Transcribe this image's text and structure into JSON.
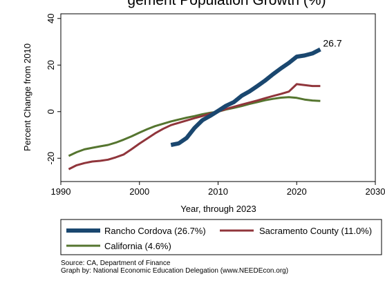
{
  "chart_data": {
    "type": "line",
    "title": "gement Population Growth (%)",
    "xlabel": "Year, through 2023",
    "ylabel": "Percent Change from 2010",
    "xlim": [
      1990,
      2030
    ],
    "ylim": [
      -30,
      42
    ],
    "x_ticks": [
      1990,
      2000,
      2010,
      2020,
      2030
    ],
    "x_tick_labels": [
      "1990",
      "2000",
      "2010",
      "2020",
      "2030"
    ],
    "y_ticks": [
      -20,
      0,
      20,
      40
    ],
    "y_tick_labels": [
      "-20",
      "0",
      "20",
      "40"
    ],
    "grid": false,
    "end_label": "26.7",
    "series": [
      {
        "name": "Rancho Cordova (26.7%)",
        "color": "#1a476f",
        "width": "thick",
        "x": [
          2004,
          2005,
          2006,
          2007,
          2008,
          2009,
          2010,
          2011,
          2012,
          2013,
          2014,
          2015,
          2016,
          2017,
          2018,
          2019,
          2020,
          2021,
          2022,
          2023
        ],
        "y": [
          -14.3,
          -13.6,
          -11.3,
          -7.0,
          -3.7,
          -1.8,
          0.3,
          2.5,
          4.1,
          6.8,
          8.7,
          11.0,
          13.4,
          16.1,
          18.6,
          20.9,
          23.6,
          24.1,
          25.0,
          26.7
        ]
      },
      {
        "name": "Sacramento County (11.0%)",
        "color": "#90353b",
        "width": "normal",
        "x": [
          1991,
          1992,
          1993,
          1994,
          1995,
          1996,
          1997,
          1998,
          1999,
          2000,
          2001,
          2002,
          2003,
          2004,
          2005,
          2006,
          2007,
          2008,
          2009,
          2010,
          2011,
          2012,
          2013,
          2014,
          2015,
          2016,
          2017,
          2018,
          2019,
          2020,
          2021,
          2022,
          2023
        ],
        "y": [
          -24.7,
          -23.0,
          -22.1,
          -21.4,
          -21.1,
          -20.6,
          -19.6,
          -18.4,
          -16.1,
          -13.7,
          -11.5,
          -9.3,
          -7.4,
          -5.8,
          -4.8,
          -3.8,
          -2.8,
          -1.9,
          -0.8,
          0.0,
          1.1,
          2.1,
          3.0,
          3.9,
          4.8,
          5.8,
          6.7,
          7.6,
          8.6,
          11.8,
          11.4,
          11.0,
          11.0
        ]
      },
      {
        "name": "California (4.6%)",
        "color": "#55752f",
        "width": "normal",
        "x": [
          1991,
          1992,
          1993,
          1994,
          1995,
          1996,
          1997,
          1998,
          1999,
          2000,
          2001,
          2002,
          2003,
          2004,
          2005,
          2006,
          2007,
          2008,
          2009,
          2010,
          2011,
          2012,
          2013,
          2014,
          2015,
          2016,
          2017,
          2018,
          2019,
          2020,
          2021,
          2022,
          2023
        ],
        "y": [
          -19.0,
          -17.4,
          -16.2,
          -15.5,
          -14.9,
          -14.3,
          -13.3,
          -12.0,
          -10.6,
          -9.0,
          -7.5,
          -6.2,
          -5.2,
          -4.2,
          -3.4,
          -2.6,
          -1.9,
          -1.1,
          -0.5,
          0.0,
          0.9,
          1.6,
          2.4,
          3.3,
          4.1,
          4.9,
          5.5,
          6.0,
          6.2,
          5.9,
          5.2,
          4.8,
          4.6
        ]
      }
    ],
    "legend_position": "bottom",
    "notes": [
      "Source: CA, Department of Finance",
      "Graph by: National Economic Education Delegation (www.NEEDEcon.org)"
    ]
  }
}
